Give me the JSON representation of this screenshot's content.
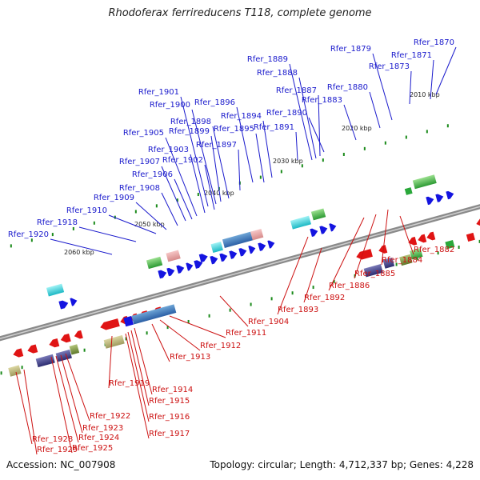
{
  "title": "Rhodoferax ferrireducens T118, complete genome",
  "footer": {
    "accession_label": "Accession:",
    "accession": "NC_007908",
    "topology_label": "Topology:",
    "topology": "circular",
    "length_label": "Length:",
    "length": "4,712,337 bp",
    "genes_label": "Genes:",
    "genes": "4,228"
  },
  "colors": {
    "backbone": "#777777",
    "forward_label": "#1a1acc",
    "reverse_label": "#cc1111",
    "tick": "#1a8a1a"
  },
  "scale_labels": [
    "2010 kbp",
    "2020 kbp",
    "2030 kbp",
    "2040 kbp",
    "2050 kbp",
    "2060 kbp"
  ],
  "forward_genes": [
    "Rfer_1870",
    "Rfer_1871",
    "Rfer_1873",
    "Rfer_1879",
    "Rfer_1880",
    "Rfer_1883",
    "Rfer_1887",
    "Rfer_1888",
    "Rfer_1889",
    "Rfer_1890",
    "Rfer_1891",
    "Rfer_1894",
    "Rfer_1895",
    "Rfer_1896",
    "Rfer_1897",
    "Rfer_1898",
    "Rfer_1899",
    "Rfer_1900",
    "Rfer_1901",
    "Rfer_1902",
    "Rfer_1903",
    "Rfer_1905",
    "Rfer_1906",
    "Rfer_1907",
    "Rfer_1908",
    "Rfer_1909",
    "Rfer_1910",
    "Rfer_1918",
    "Rfer_1920"
  ],
  "reverse_genes": [
    "Rfer_1882",
    "Rfer_1884",
    "Rfer_1885",
    "Rfer_1886",
    "Rfer_1892",
    "Rfer_1893",
    "Rfer_1904",
    "Rfer_1911",
    "Rfer_1912",
    "Rfer_1913",
    "Rfer_1914",
    "Rfer_1915",
    "Rfer_1916",
    "Rfer_1917",
    "Rfer_1919",
    "Rfer_1922",
    "Rfer_1923",
    "Rfer_1924",
    "Rfer_1925",
    "Rfer_1928",
    "Rfer_1929"
  ]
}
